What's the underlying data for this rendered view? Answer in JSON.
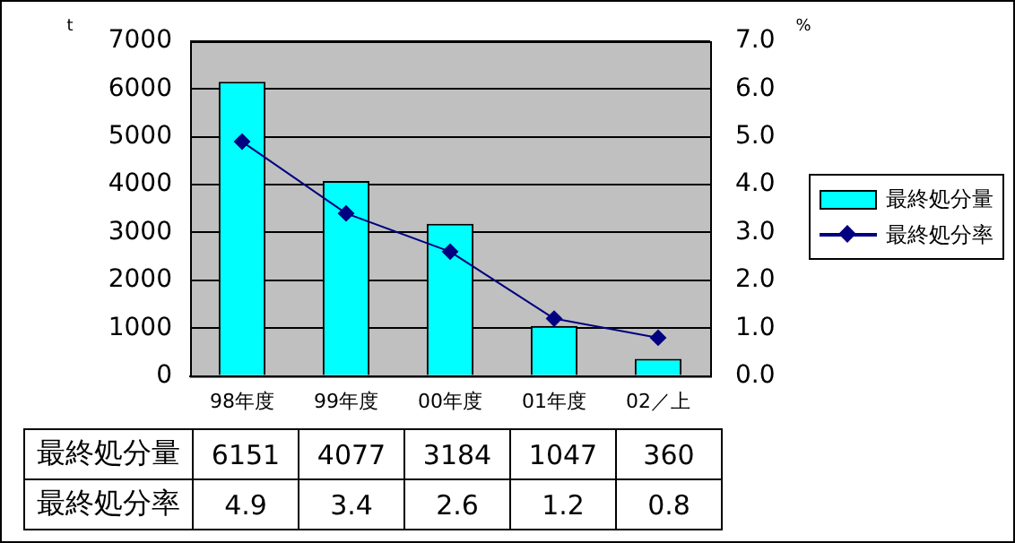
{
  "chart_data": {
    "type": "bar",
    "categories": [
      "98年度",
      "99年度",
      "00年度",
      "01年度",
      "02／上"
    ],
    "series": [
      {
        "name": "最終処分量",
        "color": "#00ffff",
        "values": [
          6151,
          4077,
          3184,
          1047,
          360
        ]
      },
      {
        "name": "最終処分率",
        "type": "line",
        "axis": "y2",
        "color": "#000080",
        "marker": "diamond",
        "values": [
          4.9,
          3.4,
          2.6,
          1.2,
          0.8
        ]
      }
    ],
    "ylabel": "t",
    "y2label": "%",
    "ylim": [
      0,
      7000
    ],
    "yticks": [
      0,
      1000,
      2000,
      3000,
      4000,
      5000,
      6000,
      7000
    ],
    "y2lim": [
      0,
      7
    ],
    "y2ticks": [
      {
        "value": 0,
        "label": "0.0"
      },
      {
        "value": 1,
        "label": "1.0"
      },
      {
        "value": 2,
        "label": "2.0"
      },
      {
        "value": 3,
        "label": "3.0"
      },
      {
        "value": 4,
        "label": "4.0"
      },
      {
        "value": 5,
        "label": "5.0"
      },
      {
        "value": 6,
        "label": "6.0"
      },
      {
        "value": 7,
        "label": "7.0"
      }
    ],
    "grid": "y",
    "legend": "right",
    "data_labels": true
  }
}
